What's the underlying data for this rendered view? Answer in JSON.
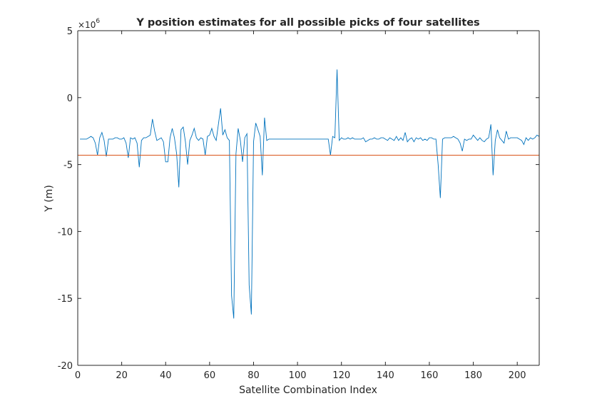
{
  "chart_data": {
    "type": "line",
    "title": "Y position estimates for all possible picks of four satellites",
    "xlabel": "Satellite Combination Index",
    "ylabel": "Y (m)",
    "y_exponent_label": "×10",
    "y_exponent_power": "6",
    "xlim": [
      0,
      210
    ],
    "ylim": [
      -20,
      5
    ],
    "xticks": [
      0,
      20,
      40,
      60,
      80,
      100,
      120,
      140,
      160,
      180,
      200
    ],
    "yticks": [
      -20,
      -15,
      -10,
      -5,
      0,
      5
    ],
    "grid": false,
    "legend": "none",
    "series": [
      {
        "color": "#0072BD",
        "x": [
          1,
          2,
          3,
          4,
          5,
          6,
          7,
          8,
          9,
          10,
          11,
          12,
          13,
          14,
          15,
          16,
          17,
          18,
          19,
          20,
          21,
          22,
          23,
          24,
          25,
          26,
          27,
          28,
          29,
          30,
          31,
          32,
          33,
          34,
          35,
          36,
          37,
          38,
          39,
          40,
          41,
          42,
          43,
          44,
          45,
          46,
          47,
          48,
          49,
          50,
          51,
          52,
          53,
          54,
          55,
          56,
          57,
          58,
          59,
          60,
          61,
          62,
          63,
          64,
          65,
          66,
          67,
          68,
          69,
          70,
          71,
          72,
          73,
          74,
          75,
          76,
          77,
          78,
          79,
          80,
          81,
          82,
          83,
          84,
          85,
          86,
          87,
          88,
          89,
          90,
          91,
          92,
          93,
          94,
          95,
          96,
          97,
          98,
          99,
          100,
          101,
          102,
          103,
          104,
          105,
          106,
          107,
          108,
          109,
          110,
          111,
          112,
          113,
          114,
          115,
          116,
          117,
          118,
          119,
          120,
          121,
          122,
          123,
          124,
          125,
          126,
          127,
          128,
          129,
          130,
          131,
          132,
          133,
          134,
          135,
          136,
          137,
          138,
          139,
          140,
          141,
          142,
          143,
          144,
          145,
          146,
          147,
          148,
          149,
          150,
          151,
          152,
          153,
          154,
          155,
          156,
          157,
          158,
          159,
          160,
          161,
          162,
          163,
          164,
          165,
          166,
          167,
          168,
          169,
          170,
          171,
          172,
          173,
          174,
          175,
          176,
          177,
          178,
          179,
          180,
          181,
          182,
          183,
          184,
          185,
          186,
          187,
          188,
          189,
          190,
          191,
          192,
          193,
          194,
          195,
          196,
          197,
          198,
          199,
          200,
          201,
          202,
          203,
          204,
          205,
          206,
          207,
          208,
          209,
          210
        ],
        "y": [
          -3.1,
          -3.1,
          -3.1,
          -3.1,
          -3.0,
          -2.9,
          -3.0,
          -3.4,
          -4.3,
          -3.0,
          -2.6,
          -3.2,
          -4.4,
          -3.1,
          -3.1,
          -3.1,
          -3.0,
          -3.0,
          -3.1,
          -3.1,
          -3.0,
          -3.4,
          -4.5,
          -3.0,
          -3.1,
          -3.0,
          -3.4,
          -5.2,
          -3.2,
          -3.0,
          -3.0,
          -2.9,
          -2.8,
          -1.6,
          -2.5,
          -3.2,
          -3.1,
          -3.0,
          -3.3,
          -4.8,
          -4.8,
          -3.0,
          -2.3,
          -3.0,
          -4.2,
          -6.7,
          -2.4,
          -2.2,
          -3.3,
          -5.0,
          -3.2,
          -2.8,
          -2.3,
          -3.0,
          -3.2,
          -3.0,
          -3.1,
          -4.3,
          -2.9,
          -2.8,
          -2.3,
          -2.9,
          -3.2,
          -2.0,
          -0.8,
          -2.8,
          -2.4,
          -3.0,
          -3.2,
          -14.8,
          -16.5,
          -4.2,
          -2.3,
          -3.2,
          -4.8,
          -3.0,
          -2.7,
          -14.0,
          -16.2,
          -3.3,
          -1.9,
          -2.4,
          -2.9,
          -5.8,
          -1.5,
          -3.2,
          -3.1,
          -3.1,
          -3.1,
          -3.1,
          -3.1,
          -3.1,
          -3.1,
          -3.1,
          -3.1,
          -3.1,
          -3.1,
          -3.1,
          -3.1,
          -3.1,
          -3.1,
          -3.1,
          -3.1,
          -3.1,
          -3.1,
          -3.1,
          -3.1,
          -3.1,
          -3.1,
          -3.1,
          -3.1,
          -3.1,
          -3.1,
          -3.1,
          -4.3,
          -2.9,
          -3.0,
          2.1,
          -3.2,
          -3.0,
          -3.1,
          -3.1,
          -3.0,
          -3.1,
          -3.0,
          -3.1,
          -3.1,
          -3.1,
          -3.1,
          -3.0,
          -3.3,
          -3.2,
          -3.1,
          -3.1,
          -3.0,
          -3.1,
          -3.1,
          -3.0,
          -3.0,
          -3.1,
          -3.2,
          -3.0,
          -3.1,
          -3.2,
          -2.9,
          -3.2,
          -3.0,
          -3.2,
          -2.6,
          -3.3,
          -3.1,
          -3.0,
          -3.3,
          -3.0,
          -3.1,
          -3.0,
          -3.2,
          -3.1,
          -3.2,
          -3.0,
          -3.0,
          -3.1,
          -3.1,
          -5.0,
          -7.5,
          -3.1,
          -3.0,
          -3.0,
          -3.0,
          -3.0,
          -2.9,
          -3.0,
          -3.1,
          -3.4,
          -4.0,
          -3.1,
          -3.2,
          -3.1,
          -3.1,
          -2.8,
          -3.0,
          -3.2,
          -3.0,
          -3.2,
          -3.3,
          -3.1,
          -3.0,
          -2.0,
          -5.8,
          -3.2,
          -2.4,
          -3.0,
          -3.2,
          -3.4,
          -2.5,
          -3.1,
          -3.0,
          -3.0,
          -3.0,
          -3.0,
          -3.1,
          -3.2,
          -3.5,
          -3.0,
          -3.2,
          -3.0,
          -3.1,
          -3.0,
          -2.8,
          -2.9
        ]
      },
      {
        "color": "#D95319",
        "x": [
          0,
          210
        ],
        "y": [
          -4.3,
          -4.3
        ]
      }
    ]
  }
}
